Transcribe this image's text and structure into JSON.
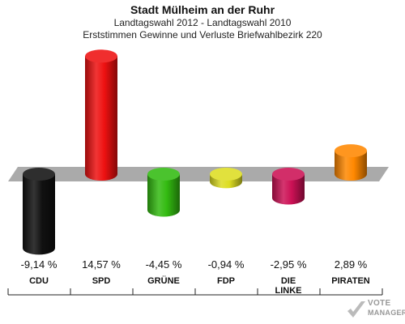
{
  "header": {
    "title": "Stadt Mülheim an der Ruhr",
    "subtitle1": "Landtagswahl 2012 - Landtagswahl 2010",
    "subtitle2": "Erststimmen Gewinne und Verluste Briefwahlbezirk 220"
  },
  "logo": {
    "line1": "VOTE",
    "line2": "MANAGER"
  },
  "chart_data": {
    "type": "bar",
    "title": "Stadt Mülheim an der Ruhr",
    "subtitle": "Landtagswahl 2012 - Landtagswahl 2010 / Erststimmen Gewinne und Verluste Briefwahlbezirk 220",
    "categories": [
      "CDU",
      "SPD",
      "GRÜNE",
      "FDP",
      "DIE LINKE",
      "PIRATEN"
    ],
    "category_lines": [
      [
        "CDU"
      ],
      [
        "SPD"
      ],
      [
        "GRÜNE"
      ],
      [
        "FDP"
      ],
      [
        "DIE",
        "LINKE"
      ],
      [
        "PIRATEN"
      ]
    ],
    "values": [
      -9.14,
      14.57,
      -4.45,
      -0.94,
      -2.95,
      2.89
    ],
    "value_labels": [
      "-9,14 %",
      "14,57 %",
      "-4,45 %",
      "-0,94 %",
      "-2,95 %",
      "2,89 %"
    ],
    "colors": [
      "#111111",
      "#ee1111",
      "#33bb11",
      "#dddd22",
      "#cc1155",
      "#ff8800"
    ],
    "baseline": 0
  }
}
